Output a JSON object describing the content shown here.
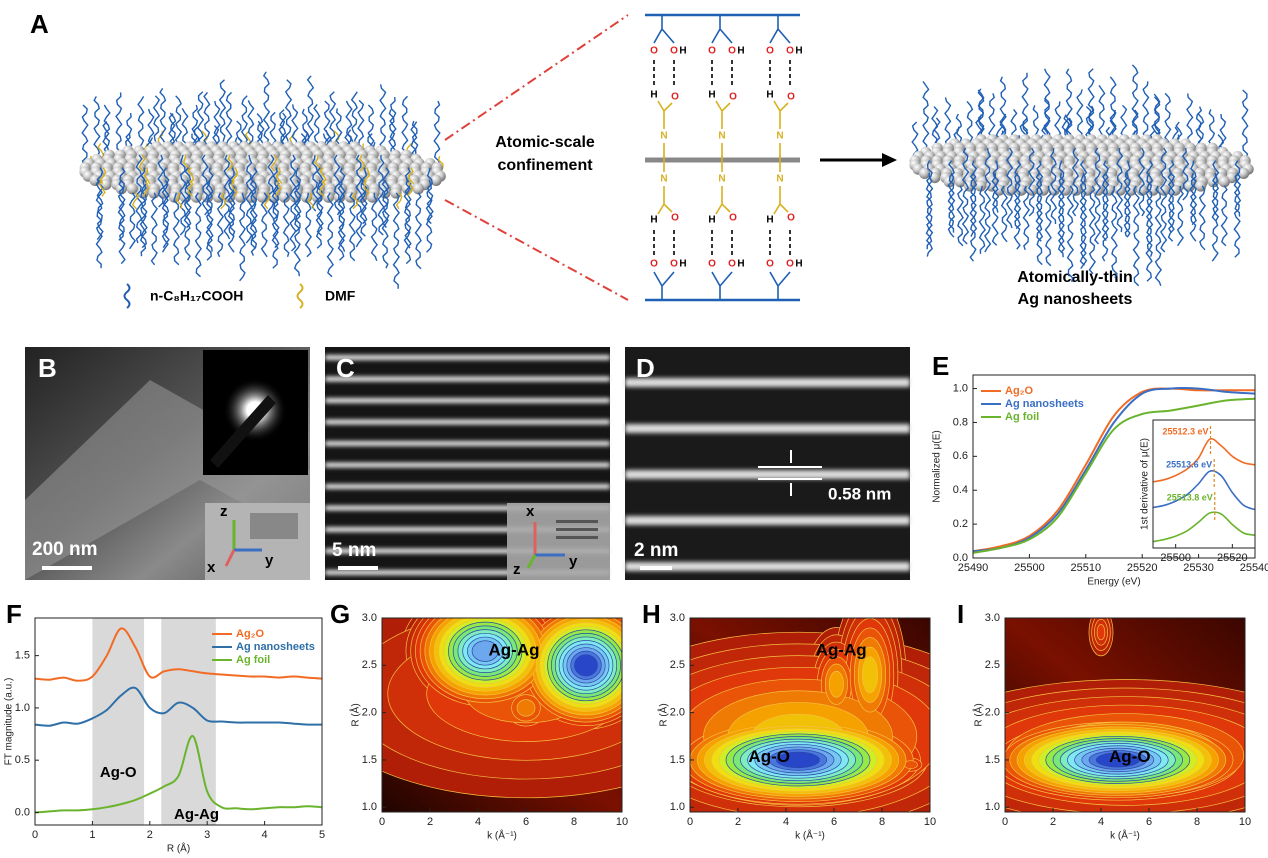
{
  "panel_labels": [
    "A",
    "B",
    "C",
    "D",
    "E",
    "F",
    "G",
    "H",
    "I"
  ],
  "panel_a": {
    "legend": [
      "n-C₈H₁₇COOH",
      "DMF"
    ],
    "confinement": [
      "Atomic-scale",
      "confinement"
    ],
    "product": [
      "Atomically-thin",
      "Ag nanosheets"
    ],
    "atoms": {
      "O": "O",
      "H": "H",
      "N": "N"
    }
  },
  "panel_b": {
    "scale": "200 nm",
    "axes": [
      "z",
      "y",
      "x"
    ]
  },
  "panel_c": {
    "scale": "5 nm",
    "axes": [
      "x",
      "y",
      "z"
    ]
  },
  "panel_d": {
    "scale": "2 nm",
    "spacing": "0.58 nm"
  },
  "chart_data": [
    {
      "type": "line",
      "xlabel": "Energy (eV)",
      "ylabel": "Normalized μ(E)",
      "x": [
        25490,
        25495,
        25500,
        25505,
        25510,
        25515,
        25520,
        25525,
        25530,
        25535,
        25540
      ],
      "series": [
        {
          "name": "Ag₂O",
          "color": "#f26b25",
          "values": [
            0.04,
            0.07,
            0.13,
            0.28,
            0.55,
            0.84,
            0.98,
            1.0,
            0.99,
            0.99,
            0.99
          ]
        },
        {
          "name": "Ag nanosheets",
          "color": "#3b6fc4",
          "values": [
            0.04,
            0.06,
            0.12,
            0.26,
            0.52,
            0.8,
            0.97,
            1.0,
            1.0,
            0.98,
            0.97
          ]
        },
        {
          "name": "Ag foil",
          "color": "#6ab42d",
          "values": [
            0.03,
            0.06,
            0.11,
            0.24,
            0.5,
            0.76,
            0.85,
            0.87,
            0.9,
            0.93,
            0.94
          ]
        }
      ],
      "xlim": [
        25490,
        25540
      ],
      "xticks": [
        25490,
        25500,
        25510,
        25520,
        25530,
        25540
      ],
      "ylim": [
        0,
        1.08
      ],
      "yticks": [
        {
          "value": 0,
          "label": "0.0"
        },
        0.2,
        0.4,
        0.6,
        0.8,
        {
          "value": 1,
          "label": "1.0"
        }
      ],
      "legend": "upper left"
    },
    {
      "type": "line",
      "ylabel": "1st derivative of μ(E)",
      "x": [
        25492,
        25496,
        25500,
        25504,
        25508,
        25512,
        25516,
        25520,
        25524,
        25528
      ],
      "series": [
        {
          "color": "#f26b25",
          "values": [
            1.55,
            1.6,
            1.7,
            1.85,
            2.1,
            2.55,
            2.4,
            2.15,
            2.0,
            1.95
          ]
        },
        {
          "color": "#3b6fc4",
          "values": [
            0.95,
            1.0,
            1.1,
            1.25,
            1.5,
            1.8,
            1.7,
            1.3,
            1.0,
            0.9
          ]
        },
        {
          "color": "#6ab42d",
          "values": [
            0.15,
            0.2,
            0.28,
            0.4,
            0.6,
            0.82,
            0.8,
            0.55,
            0.35,
            0.3
          ]
        }
      ],
      "xlim": [
        25492,
        25528
      ],
      "xticks": [
        25500,
        25520
      ],
      "ylim": [
        0,
        3
      ],
      "annotations": [
        {
          "text": "25512.3 eV",
          "x": 25512.3,
          "color": "#f26b25"
        },
        {
          "text": "25513.6 eV",
          "x": 25513.6,
          "color": "#3b6fc4"
        },
        {
          "text": "25513.8 eV",
          "x": 25513.8,
          "color": "#6ab42d"
        }
      ]
    },
    {
      "type": "line",
      "xlabel": "R (Å)",
      "ylabel": "FT magnitude  (a.u.)",
      "x": [
        0,
        0.25,
        0.5,
        0.75,
        1,
        1.25,
        1.5,
        1.75,
        2,
        2.25,
        2.5,
        2.75,
        3,
        3.25,
        3.5,
        3.75,
        4,
        4.25,
        4.5,
        4.75,
        5
      ],
      "series": [
        {
          "name": "Ag₂O",
          "color": "#f26b25",
          "values": [
            1.28,
            1.27,
            1.29,
            1.26,
            1.3,
            1.5,
            1.76,
            1.58,
            1.3,
            1.35,
            1.37,
            1.35,
            1.33,
            1.32,
            1.31,
            1.3,
            1.3,
            1.29,
            1.3,
            1.29,
            1.28
          ]
        },
        {
          "name": "Ag nanosheets",
          "color": "#2e6fa8",
          "values": [
            0.84,
            0.83,
            0.86,
            0.85,
            0.9,
            0.98,
            1.12,
            1.19,
            1.0,
            0.95,
            1.05,
            1.0,
            0.88,
            0.87,
            0.86,
            0.86,
            0.86,
            0.86,
            0.85,
            0.84,
            0.84
          ]
        },
        {
          "name": "Ag foil",
          "color": "#6ab42d",
          "values": [
            0.0,
            0.01,
            0.02,
            0.02,
            0.03,
            0.05,
            0.08,
            0.12,
            0.18,
            0.25,
            0.35,
            0.73,
            0.2,
            0.05,
            0.04,
            0.03,
            0.04,
            0.05,
            0.05,
            0.06,
            0.05
          ]
        }
      ],
      "xlim": [
        0,
        5
      ],
      "xticks": [
        0,
        1,
        2,
        3,
        4,
        5
      ],
      "ylim": [
        -0.12,
        1.86
      ],
      "yticks": [
        {
          "value": 0,
          "label": "0.0"
        },
        0.5,
        {
          "value": 1,
          "label": "1.0"
        },
        1.5
      ],
      "regions": [
        [
          1.0,
          1.9
        ],
        [
          2.2,
          3.15
        ]
      ],
      "region_labels": [
        "Ag-O",
        "Ag-Ag"
      ],
      "legend": "upper right"
    },
    {
      "type": "contour",
      "xlabel": "k (Å⁻¹)",
      "ylabel": "R (Å)",
      "labels": [
        "Ag-Ag"
      ],
      "xlim": [
        0,
        10
      ],
      "xticks": [
        0,
        2,
        4,
        6,
        8,
        10
      ],
      "ylim": [
        0.95,
        3.0
      ],
      "yticks": [
        {
          "value": 1,
          "label": "1.0"
        },
        1.5,
        {
          "value": 2,
          "label": "2.0"
        },
        2.5,
        {
          "value": 3,
          "label": "3.0"
        }
      ],
      "peaks": [
        {
          "k": 6,
          "R": 2.2,
          "rk": 9,
          "rR": 1.1,
          "top": 0.3
        },
        {
          "k": 8.5,
          "R": 2.5,
          "rk": 3.2,
          "rR": 0.75,
          "top": 1
        },
        {
          "k": 4.3,
          "R": 2.65,
          "rk": 3.5,
          "rR": 0.7,
          "top": 0.9
        },
        {
          "k": 6,
          "R": 2.05,
          "rk": 1.5,
          "rR": 0.35,
          "top": 0.35
        }
      ]
    },
    {
      "type": "contour",
      "xlabel": "k (Å⁻¹)",
      "ylabel": "R (Å)",
      "labels": [
        "Ag-Ag",
        "Ag-O"
      ],
      "xlim": [
        0,
        10
      ],
      "xticks": [
        0,
        2,
        4,
        6,
        8,
        10
      ],
      "ylim": [
        0.95,
        3.0
      ],
      "yticks": [
        {
          "value": 1,
          "label": "1.0"
        },
        1.5,
        {
          "value": 2,
          "label": "2.0"
        },
        2.5,
        {
          "value": 3,
          "label": "3.0"
        }
      ],
      "peaks": [
        {
          "k": 4.5,
          "R": 1.75,
          "rk": 9,
          "rR": 1.1,
          "top": 0.45
        },
        {
          "k": 4.5,
          "R": 1.5,
          "rk": 6,
          "rR": 0.55,
          "top": 1
        },
        {
          "k": 6.1,
          "R": 2.3,
          "rk": 1.3,
          "rR": 0.6,
          "top": 0.4
        },
        {
          "k": 7.5,
          "R": 2.4,
          "rk": 1.5,
          "rR": 0.9,
          "top": 0.45
        },
        {
          "k": 9.2,
          "R": 1.45,
          "rk": 1,
          "rR": 0.15,
          "top": 0.25
        }
      ]
    },
    {
      "type": "contour",
      "xlabel": "k (Å⁻¹)",
      "ylabel": "R (Å)",
      "labels": [
        "Ag-O"
      ],
      "xlim": [
        0,
        10
      ],
      "xticks": [
        0,
        2,
        4,
        6,
        8,
        10
      ],
      "ylim": [
        0.95,
        3.0
      ],
      "yticks": [
        {
          "value": 1,
          "label": "1.0"
        },
        1.5,
        {
          "value": 2,
          "label": "2.0"
        },
        2.5,
        {
          "value": 3,
          "label": "3.0"
        }
      ],
      "peaks": [
        {
          "k": 5,
          "R": 1.55,
          "rk": 9,
          "rR": 0.8,
          "top": 0.45
        },
        {
          "k": 4.7,
          "R": 1.5,
          "rk": 6,
          "rR": 0.5,
          "top": 1
        },
        {
          "k": 4,
          "R": 2.85,
          "rk": 0.5,
          "rR": 0.25,
          "top": 0.2
        }
      ]
    }
  ]
}
